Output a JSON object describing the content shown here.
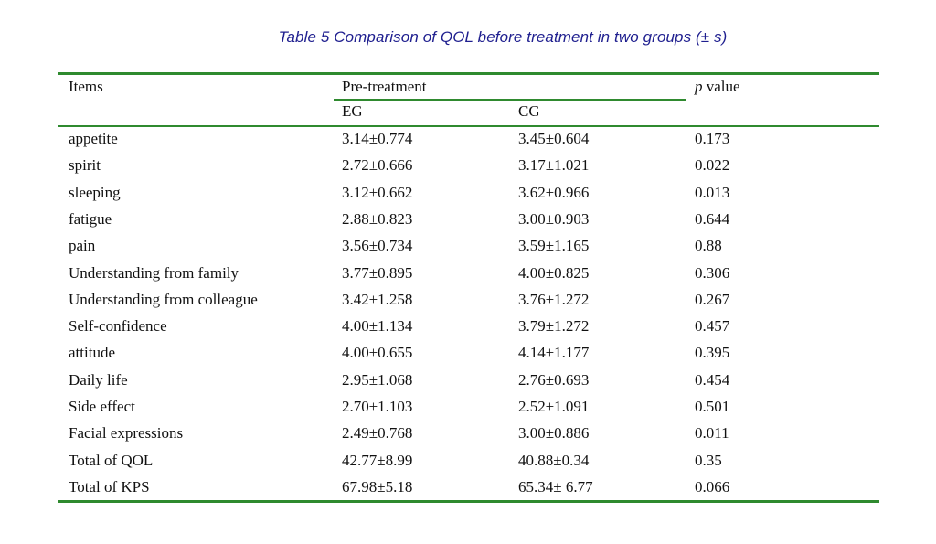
{
  "caption": "Table 5  Comparison of QOL before treatment in two groups (± s)",
  "headers": {
    "items": "Items",
    "pre_treatment": "Pre-treatment",
    "p_letter": "p",
    "p_rest": " value",
    "eg": "EG",
    "cg": "CG"
  },
  "rows": [
    {
      "item": "appetite",
      "eg": "3.14±0.774",
      "cg": "3.45±0.604",
      "p": "0.173"
    },
    {
      "item": "spirit",
      "eg": "2.72±0.666",
      "cg": "3.17±1.021",
      "p": "0.022"
    },
    {
      "item": "sleeping",
      "eg": "3.12±0.662",
      "cg": "3.62±0.966",
      "p": "0.013"
    },
    {
      "item": "fatigue",
      "eg": "2.88±0.823",
      "cg": "3.00±0.903",
      "p": "0.644"
    },
    {
      "item": "pain",
      "eg": "3.56±0.734",
      "cg": "3.59±1.165",
      "p": "0.88"
    },
    {
      "item": "Understanding from family",
      "eg": "3.77±0.895",
      "cg": "4.00±0.825",
      "p": "0.306"
    },
    {
      "item": "Understanding from colleague",
      "eg": "3.42±1.258",
      "cg": "3.76±1.272",
      "p": "0.267"
    },
    {
      "item": "Self-confidence",
      "eg": "4.00±1.134",
      "cg": "3.79±1.272",
      "p": "0.457"
    },
    {
      "item": "attitude",
      "eg": "4.00±0.655",
      "cg": "4.14±1.177",
      "p": "0.395"
    },
    {
      "item": "Daily life",
      "eg": "2.95±1.068",
      "cg": "2.76±0.693",
      "p": "0.454"
    },
    {
      "item": "Side effect",
      "eg": "2.70±1.103",
      "cg": "2.52±1.091",
      "p": "0.501"
    },
    {
      "item": "Facial expressions",
      "eg": "2.49±0.768",
      "cg": "3.00±0.886",
      "p": "0.011"
    },
    {
      "item": "Total of QOL",
      "eg": "42.77±8.99",
      "cg": "40.88±0.34",
      "p": "0.35"
    },
    {
      "item": "Total of KPS",
      "eg": "67.98±5.18",
      "cg": "65.34± 6.77",
      "p": "0.066"
    }
  ],
  "colors": {
    "caption": "#1f1f8f",
    "rules": "#2f8a2f"
  }
}
